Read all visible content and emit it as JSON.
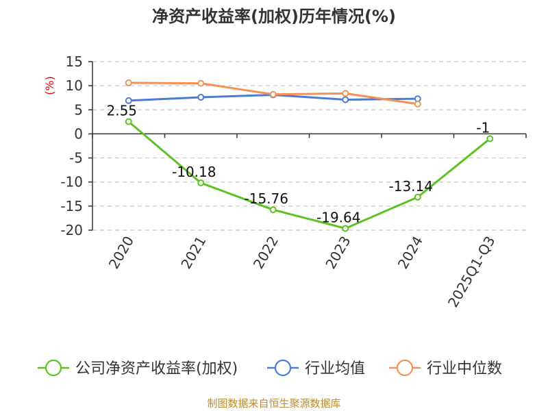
{
  "chart_data": {
    "type": "line",
    "title": "净资产收益率(加权)历年情况(%)",
    "ylabel": "(%)",
    "categories": [
      "2020",
      "2021",
      "2022",
      "2023",
      "2024",
      "2025Q1-Q3"
    ],
    "ylim": [
      -20,
      15
    ],
    "yticks": [
      15,
      10,
      5,
      0,
      -5,
      -10,
      -15,
      -20
    ],
    "grid": true,
    "legend_position": "bottom",
    "series": [
      {
        "name": "公司净资产收益率(加权)",
        "color": "#5cc21f",
        "values": [
          2.55,
          -10.18,
          -15.76,
          -19.64,
          -13.14,
          -1
        ],
        "labels": [
          "2.55",
          "-10.18",
          "-15.76",
          "-19.64",
          "-13.14",
          "-1"
        ]
      },
      {
        "name": "行业均值",
        "color": "#4a7bd6",
        "values": [
          6.9,
          7.6,
          8.1,
          7.1,
          7.3,
          null
        ]
      },
      {
        "name": "行业中位数",
        "color": "#f49058",
        "values": [
          10.6,
          10.5,
          8.2,
          8.4,
          6.2,
          null
        ]
      }
    ]
  },
  "source_text": "制图数据来自恒生聚源数据库"
}
